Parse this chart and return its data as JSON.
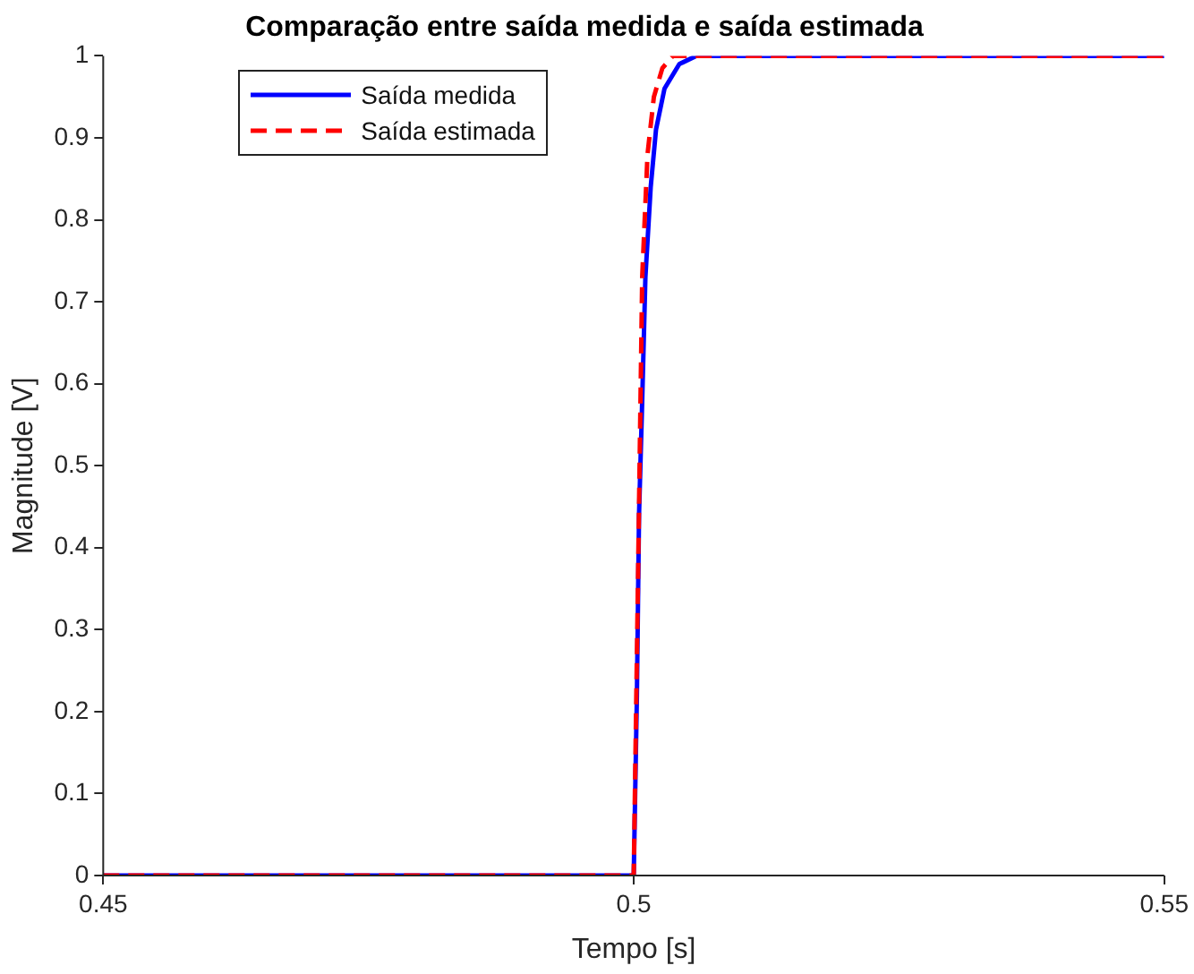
{
  "chart_data": {
    "type": "line",
    "title": "Comparação entre saída medida e saída estimada",
    "xlabel": "Tempo [s]",
    "ylabel": "Magnitude [V]",
    "xlim": [
      0.45,
      0.55
    ],
    "xticks": [
      0.45,
      0.5,
      0.55
    ],
    "ylim": [
      0,
      1
    ],
    "yticks": [
      0,
      0.1,
      0.2,
      0.3,
      0.4,
      0.5,
      0.6,
      0.7,
      0.8,
      0.9,
      1
    ],
    "grid": false,
    "legend": "top left",
    "marker": "none",
    "series": [
      {
        "name": "Saída medida",
        "color": "#0000ff",
        "line_style": "solid",
        "x": [
          0.45,
          0.5,
          0.5003,
          0.5005,
          0.5008,
          0.5011,
          0.5016,
          0.5021,
          0.5029,
          0.5043,
          0.5059,
          0.55
        ],
        "values": [
          0,
          0,
          0.22,
          0.44,
          0.58,
          0.73,
          0.84,
          0.91,
          0.96,
          0.99,
          1,
          1
        ]
      },
      {
        "name": "Saída estimada",
        "color": "#ff0000",
        "line_style": "dashed",
        "x": [
          0.45,
          0.5,
          0.5004,
          0.5008,
          0.5013,
          0.5019,
          0.5027,
          0.5037,
          0.55
        ],
        "values": [
          0,
          0,
          0.36,
          0.73,
          0.88,
          0.95,
          0.985,
          1,
          1
        ]
      }
    ]
  }
}
